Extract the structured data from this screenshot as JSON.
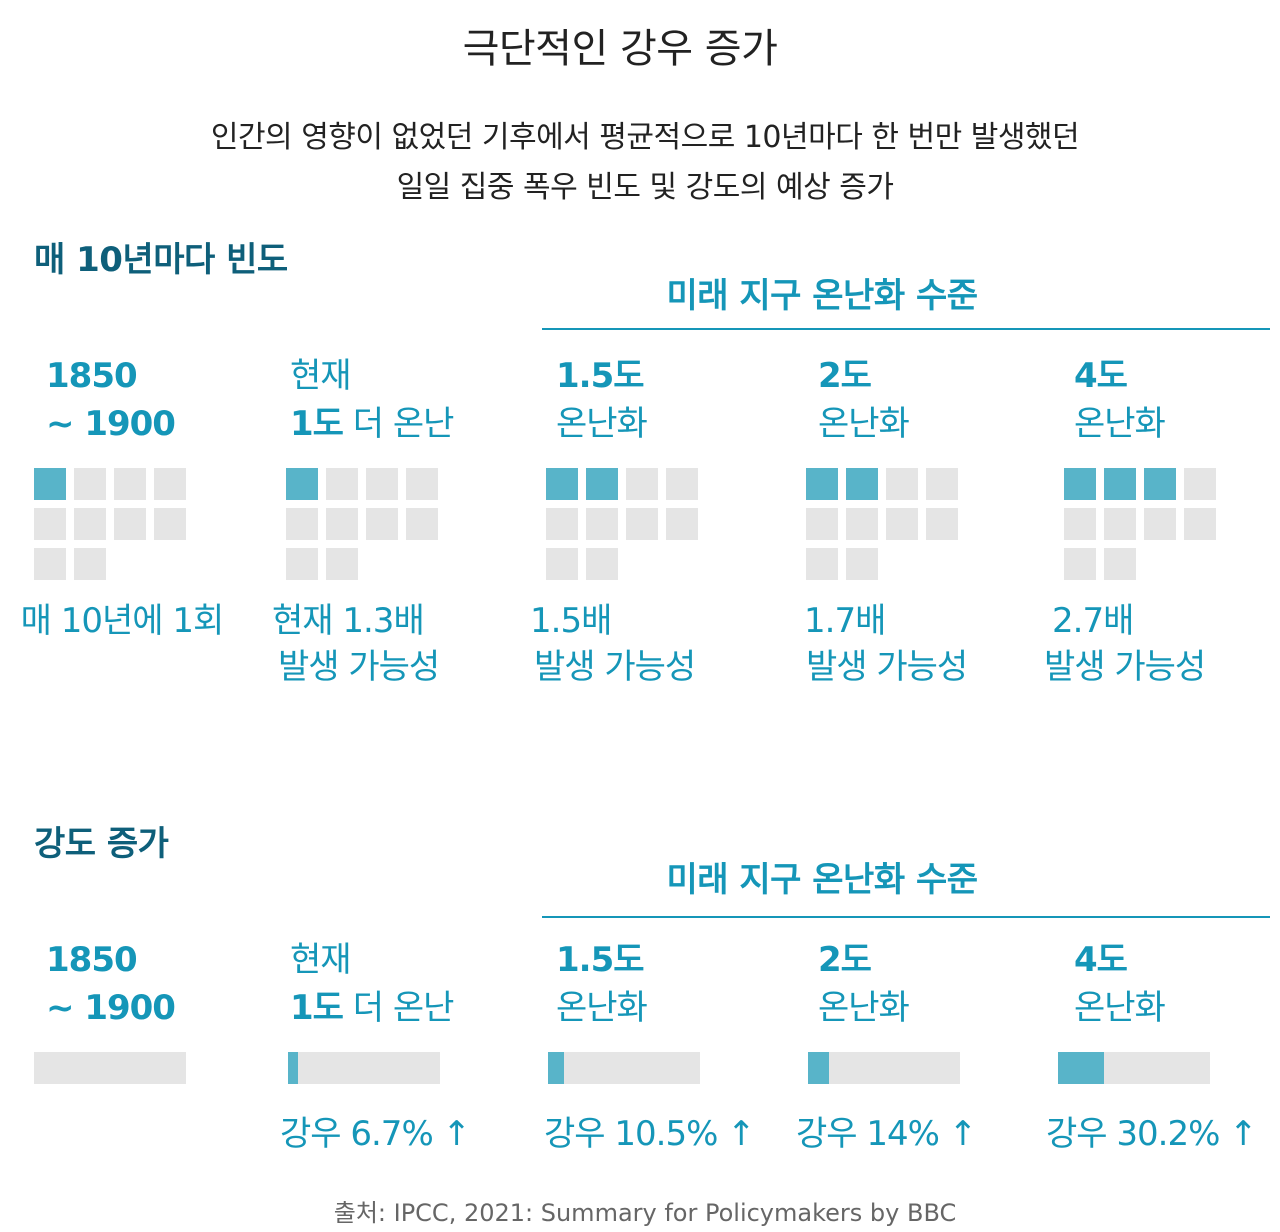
{
  "title": "극단적인 강우 증가",
  "subtitle": {
    "line1": "인간의 영향이 없었던 기후에서 평균적으로 10년마다 한 번만 발생했던",
    "line2": "일일 집중 폭우 빈도 및 강도의 예상 증가"
  },
  "frequency_section": {
    "title": "매 10년마다 빈도",
    "future_label": "미래 지구 온난화 수준"
  },
  "intensity_section": {
    "title": "강도 증가",
    "future_label": "미래 지구 온난화 수준"
  },
  "scenarios": [
    {
      "line1_bold": "1850",
      "line1_rest": "",
      "line2_bold": "~ 1900",
      "line2_rest": "",
      "freq_label1": "매 10년에 1회",
      "freq_label2": "",
      "intensity_label": ""
    },
    {
      "line1_bold": "",
      "line1_rest": "현재",
      "line2_bold": "1도",
      "line2_rest": " 더 온난",
      "freq_label1": "현재 1.3배",
      "freq_label2": "발생 가능성",
      "intensity_label": "강우 6.7% ↑"
    },
    {
      "line1_bold": "1.5도",
      "line1_rest": "",
      "line2_bold": "",
      "line2_rest": "온난화",
      "freq_label1": "1.5배",
      "freq_label2": "발생 가능성",
      "intensity_label": "강우 10.5% ↑"
    },
    {
      "line1_bold": "2도",
      "line1_rest": "",
      "line2_bold": "",
      "line2_rest": "온난화",
      "freq_label1": "1.7배",
      "freq_label2": "발생 가능성",
      "intensity_label": "강우 14% ↑"
    },
    {
      "line1_bold": "4도",
      "line1_rest": "",
      "line2_bold": "",
      "line2_rest": "온난화",
      "freq_label1": "2.7배",
      "freq_label2": "발생 가능성",
      "intensity_label": "강우 30.2% ↑"
    }
  ],
  "chart_data": [
    {
      "type": "bar",
      "title": "매 10년마다 빈도",
      "categories": [
        "1850 ~ 1900",
        "현재 1도 더 온난",
        "1.5도 온난화",
        "2도 온난화",
        "4도 온난화"
      ],
      "values": [
        1,
        1.3,
        1.5,
        1.7,
        2.7
      ],
      "filled_squares": [
        1,
        1,
        2,
        2,
        3
      ],
      "total_squares": 10
    },
    {
      "type": "bar",
      "title": "강도 증가",
      "categories": [
        "1850 ~ 1900",
        "현재 1도 더 온난",
        "1.5도 온난화",
        "2도 온난화",
        "4도 온난화"
      ],
      "values": [
        0,
        6.7,
        10.5,
        14,
        30.2
      ],
      "unit": "%"
    }
  ],
  "colors": {
    "title_dark": "#0e5f7a",
    "accent": "#1596b8",
    "filled": "#58b4c9",
    "empty": "#e5e5e5"
  },
  "source": "출처: IPCC, 2021: Summary for Policymakers by BBC"
}
